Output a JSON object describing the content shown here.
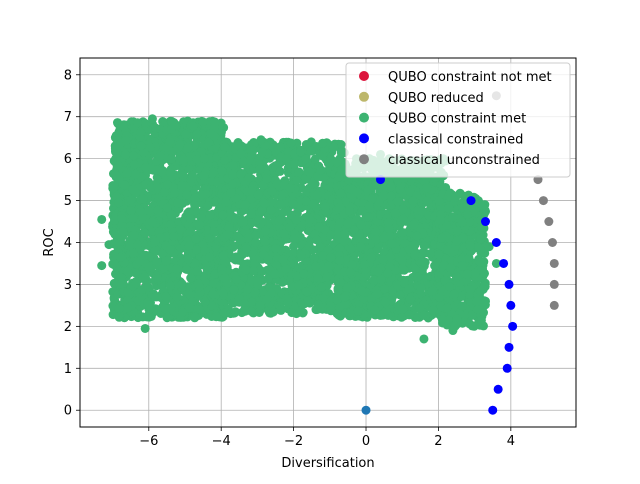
{
  "chart_data": {
    "type": "scatter",
    "xlabel": "Diversification",
    "ylabel": "ROC",
    "xlim": [
      -7.9,
      5.8
    ],
    "ylim": [
      -0.4,
      8.4
    ],
    "xticks": [
      -6,
      -4,
      -2,
      0,
      2,
      4
    ],
    "xtick_labels": [
      "−6",
      "−4",
      "−2",
      "0",
      "2",
      "4"
    ],
    "yticks": [
      0,
      1,
      2,
      3,
      4,
      5,
      6,
      7,
      8
    ],
    "ytick_labels": [
      "0",
      "1",
      "2",
      "3",
      "4",
      "5",
      "6",
      "7",
      "8"
    ],
    "grid": true,
    "legend_position": "top-right",
    "series": [
      {
        "name": "QUBO constraint not met",
        "color": "#dc143c",
        "points": []
      },
      {
        "name": "QUBO reduced",
        "color": "#bdb76b",
        "points": []
      },
      {
        "name": "QUBO constraint met",
        "color": "#3cb371",
        "cloud": {
          "regions": [
            {
              "x": [
                -7.0,
                -3.9
              ],
              "y": [
                2.2,
                6.9
              ],
              "density": 1800
            },
            {
              "x": [
                -4.0,
                -0.6
              ],
              "y": [
                2.3,
                6.4
              ],
              "density": 1400
            },
            {
              "x": [
                -0.8,
                2.2
              ],
              "y": [
                2.2,
                6.0
              ],
              "density": 1400
            },
            {
              "x": [
                2.0,
                3.3
              ],
              "y": [
                2.0,
                5.2
              ],
              "density": 500
            }
          ],
          "outliers": [
            [
              -7.3,
              4.55
            ],
            [
              -7.3,
              3.45
            ],
            [
              -7.1,
              3.95
            ],
            [
              -6.1,
              1.95
            ],
            [
              -2.9,
              6.45
            ],
            [
              -2.2,
              6.0
            ],
            [
              0.4,
              6.1
            ],
            [
              1.6,
              1.7
            ],
            [
              2.4,
              1.9
            ],
            [
              3.3,
              2.6
            ],
            [
              3.4,
              3.9
            ],
            [
              3.6,
              3.5
            ],
            [
              -6.9,
              6.25
            ],
            [
              -6.9,
              5.6
            ],
            [
              -5.9,
              6.95
            ]
          ]
        }
      },
      {
        "name": "classical constrained",
        "color": "#0000ff",
        "points": [
          [
            0.4,
            5.5
          ],
          [
            2.9,
            5.0
          ],
          [
            3.3,
            4.5
          ],
          [
            3.6,
            4.0
          ],
          [
            3.8,
            3.5
          ],
          [
            3.95,
            3.0
          ],
          [
            4.0,
            2.5
          ],
          [
            4.05,
            2.0
          ],
          [
            3.95,
            1.5
          ],
          [
            3.9,
            1.0
          ],
          [
            3.65,
            0.5
          ],
          [
            3.5,
            0.0
          ],
          [
            0.0,
            0.0
          ]
        ]
      },
      {
        "name": "classical unconstrained",
        "color": "#808080",
        "points": [
          [
            3.6,
            7.5
          ],
          [
            4.75,
            5.5
          ],
          [
            4.9,
            5.0
          ],
          [
            5.05,
            4.5
          ],
          [
            5.15,
            4.0
          ],
          [
            5.2,
            3.5
          ],
          [
            5.2,
            3.0
          ],
          [
            5.2,
            2.5
          ]
        ]
      }
    ]
  }
}
